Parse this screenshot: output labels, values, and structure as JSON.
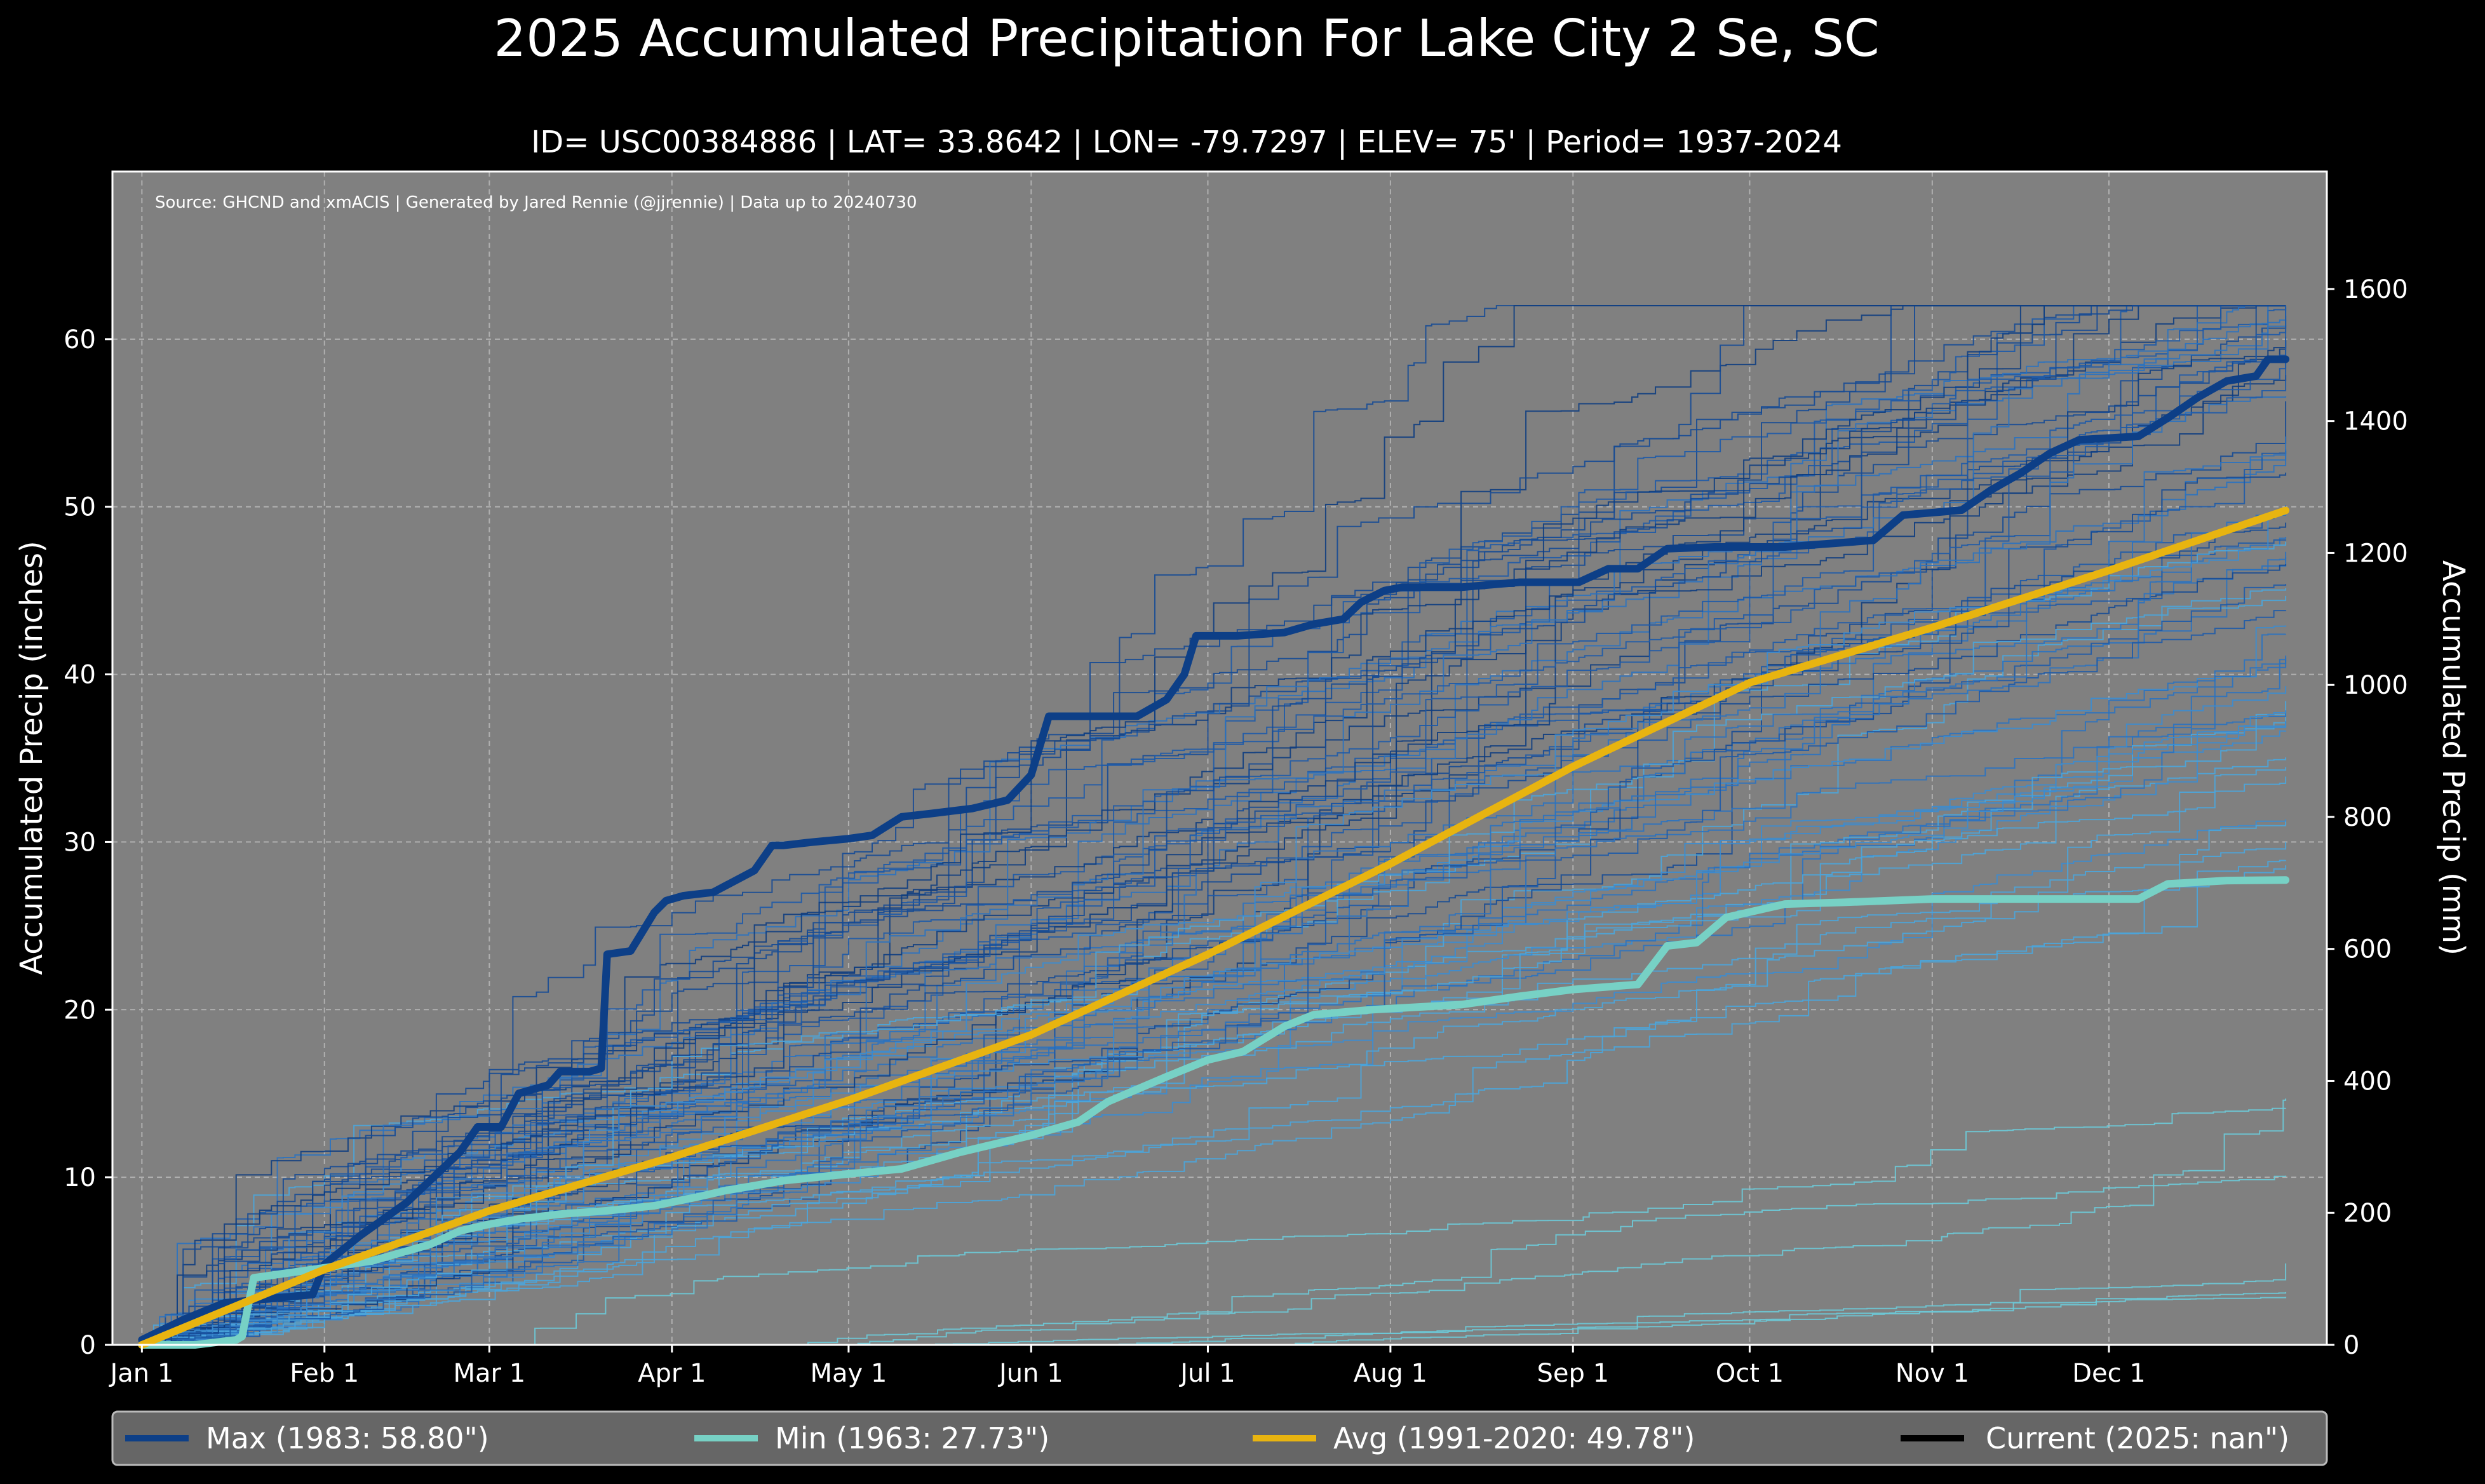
{
  "chart_data": {
    "type": "line",
    "title": "2025 Accumulated Precipitation For Lake City 2 Se, SC",
    "subtitle": "ID= USC00384886 | LAT= 33.8642 | LON= -79.7297 | ELEV= 75' | Period= 1937-2024",
    "source_note": "Source: GHCND and xmACIS | Generated by Jared Rennie (@jjrennie) | Data up to 20240730",
    "ylabel": "Accumulated Precip (inches)",
    "ylabel_right": "Accumulated Precip (mm)",
    "xlabel": "",
    "x_ticks": [
      "Jan 1",
      "Feb 1",
      "Mar 1",
      "Apr 1",
      "May 1",
      "Jun 1",
      "Jul 1",
      "Aug 1",
      "Sep 1",
      "Oct 1",
      "Nov 1",
      "Dec 1"
    ],
    "x_tick_days": [
      1,
      32,
      60,
      91,
      121,
      152,
      182,
      213,
      244,
      274,
      305,
      335
    ],
    "xlim": [
      -4,
      372
    ],
    "ylim": [
      0,
      70
    ],
    "y_ticks": [
      0,
      10,
      20,
      30,
      40,
      50,
      60
    ],
    "y2_ticks": [
      0,
      200,
      400,
      600,
      800,
      1000,
      1200,
      1400,
      1600
    ],
    "grid": true,
    "legend_position": "bottom",
    "series": [
      {
        "name": "Max (1983:  58.80\")",
        "color": "#0d3f87",
        "x": [
          1,
          8,
          15,
          30,
          32,
          38,
          44,
          46,
          52,
          55,
          58,
          62,
          65,
          70,
          72,
          77,
          79,
          80,
          84,
          88,
          90,
          93,
          98,
          105,
          108,
          110,
          115,
          121,
          125,
          130,
          135,
          142,
          148,
          152,
          155,
          158,
          162,
          170,
          175,
          178,
          180,
          183,
          187,
          195,
          200,
          205,
          208,
          212,
          215,
          220,
          225,
          235,
          245,
          250,
          255,
          260,
          268,
          280,
          295,
          300,
          310,
          315,
          320,
          325,
          330,
          340,
          345,
          350,
          355,
          360,
          362,
          365
        ],
        "y": [
          0.3,
          1.5,
          2.5,
          3,
          4.8,
          6.5,
          8,
          8.5,
          10.5,
          11.5,
          13,
          13,
          15,
          15.5,
          16.3,
          16.3,
          16.5,
          23.3,
          23.5,
          25.8,
          26.5,
          26.8,
          27,
          28.3,
          29.8,
          29.8,
          30,
          30.2,
          30.4,
          31.5,
          31.7,
          32,
          32.5,
          34,
          37.5,
          37.5,
          37.5,
          37.5,
          38.5,
          40,
          42.3,
          42.3,
          42.3,
          42.5,
          43,
          43.3,
          44.3,
          45,
          45.2,
          45.2,
          45.2,
          45.5,
          45.5,
          46.3,
          46.3,
          47.5,
          47.6,
          47.6,
          48,
          49.5,
          49.8,
          51,
          52,
          53.2,
          54,
          54.2,
          55.3,
          56.5,
          57.5,
          57.8,
          58.8,
          58.8
        ]
      },
      {
        "name": "Min (1963:  27.73\")",
        "color": "#77d1c5",
        "x": [
          1,
          10,
          17,
          18,
          20,
          30,
          40,
          45,
          50,
          55,
          60,
          65,
          72,
          80,
          88,
          95,
          100,
          110,
          121,
          130,
          135,
          140,
          152,
          160,
          165,
          175,
          182,
          188,
          195,
          200,
          210,
          225,
          235,
          244,
          255,
          260,
          265,
          270,
          280,
          290,
          305,
          330,
          340,
          345,
          355,
          365
        ],
        "y": [
          0,
          0,
          0.3,
          0.5,
          4,
          4.5,
          5,
          5.5,
          6,
          6.8,
          7.2,
          7.5,
          7.8,
          8,
          8.3,
          8.8,
          9.2,
          9.8,
          10.2,
          10.5,
          11,
          11.5,
          12.5,
          13.3,
          14.5,
          16,
          17,
          17.5,
          19,
          19.7,
          20,
          20.3,
          20.8,
          21.2,
          21.5,
          23.8,
          24,
          25.5,
          26.3,
          26.4,
          26.6,
          26.6,
          26.6,
          27.5,
          27.7,
          27.73
        ]
      },
      {
        "name": "Avg (1991-2020:  49.78\")",
        "color": "#e8b410",
        "x": [
          1,
          32,
          60,
          91,
          121,
          152,
          182,
          213,
          244,
          274,
          305,
          335,
          365
        ],
        "y": [
          0,
          4.5,
          8,
          11.2,
          14.6,
          18.5,
          23.3,
          28.7,
          34.5,
          39.5,
          42.8,
          46.2,
          49.78
        ]
      },
      {
        "name": "Current (2025:    nan\")",
        "color": "#000000",
        "x": [],
        "y": []
      }
    ]
  }
}
